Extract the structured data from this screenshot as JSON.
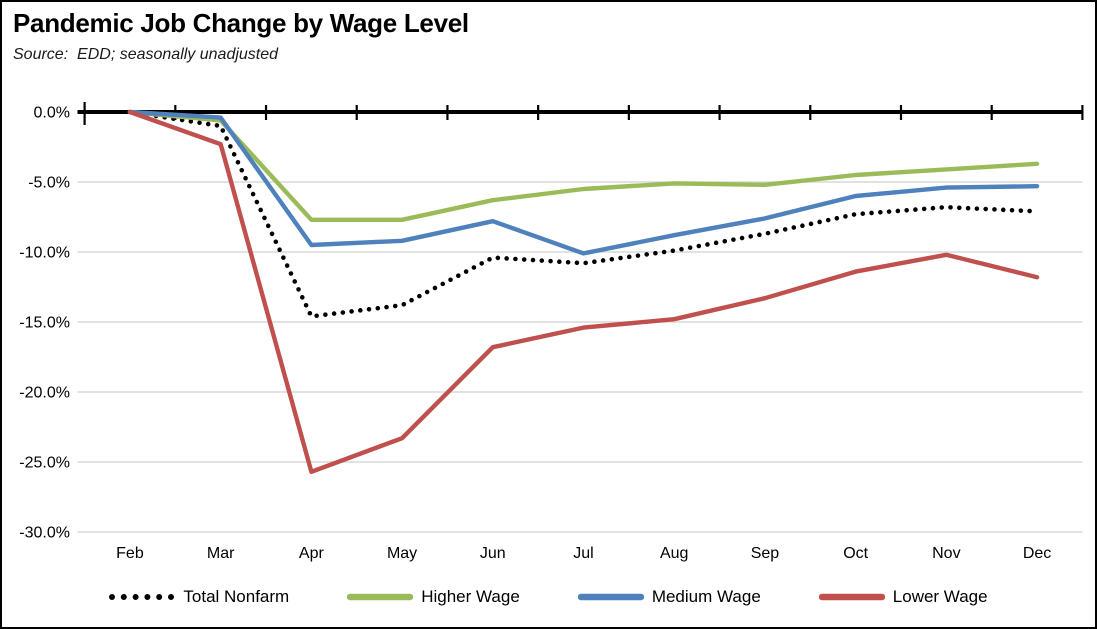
{
  "header": {
    "title": "Pandemic Job Change by Wage Level",
    "source_note": "Source:  EDD; seasonally unadjusted"
  },
  "chart_data": {
    "type": "line",
    "title": "Pandemic Job Change by Wage Level",
    "subtitle": "Source: EDD; seasonally unadjusted",
    "categories": [
      "Feb",
      "Mar",
      "Apr",
      "May",
      "Jun",
      "Jul",
      "Aug",
      "Sep",
      "Oct",
      "Nov",
      "Dec"
    ],
    "xlabel": "",
    "ylabel": "",
    "ylim": [
      -30,
      0
    ],
    "y_axis": {
      "tick_labels": [
        "0.0%",
        "-5.0%",
        "-10.0%",
        "-15.0%",
        "-20.0%",
        "-25.0%",
        "-30.0%"
      ],
      "tick_values": [
        0,
        -5,
        -10,
        -15,
        -20,
        -25,
        -30
      ],
      "unit": "percent"
    },
    "grid": "horizontal-only",
    "legend_position": "bottom",
    "axis_color": "#000000",
    "gridline_color": "#d9d9d9",
    "series": [
      {
        "name": "Total Nonfarm",
        "color": "#000000",
        "style": "dotted",
        "values": [
          0.0,
          -1.0,
          -14.6,
          -13.8,
          -10.4,
          -10.8,
          -9.9,
          -8.7,
          -7.3,
          -6.8,
          -7.1
        ]
      },
      {
        "name": "Higher Wage",
        "color": "#9bbb59",
        "style": "solid",
        "values": [
          0.0,
          -0.6,
          -7.7,
          -7.7,
          -6.3,
          -5.5,
          -5.1,
          -5.2,
          -4.5,
          -4.1,
          -3.7
        ]
      },
      {
        "name": "Medium Wage",
        "color": "#4f81bd",
        "style": "solid",
        "values": [
          0.0,
          -0.4,
          -9.5,
          -9.2,
          -7.8,
          -10.1,
          -8.8,
          -7.6,
          -6.0,
          -5.4,
          -5.3
        ]
      },
      {
        "name": "Lower Wage",
        "color": "#c0504d",
        "style": "solid",
        "values": [
          0.0,
          -2.3,
          -25.7,
          -23.3,
          -16.8,
          -15.4,
          -14.8,
          -13.3,
          -11.4,
          -10.2,
          -11.8
        ]
      }
    ]
  }
}
